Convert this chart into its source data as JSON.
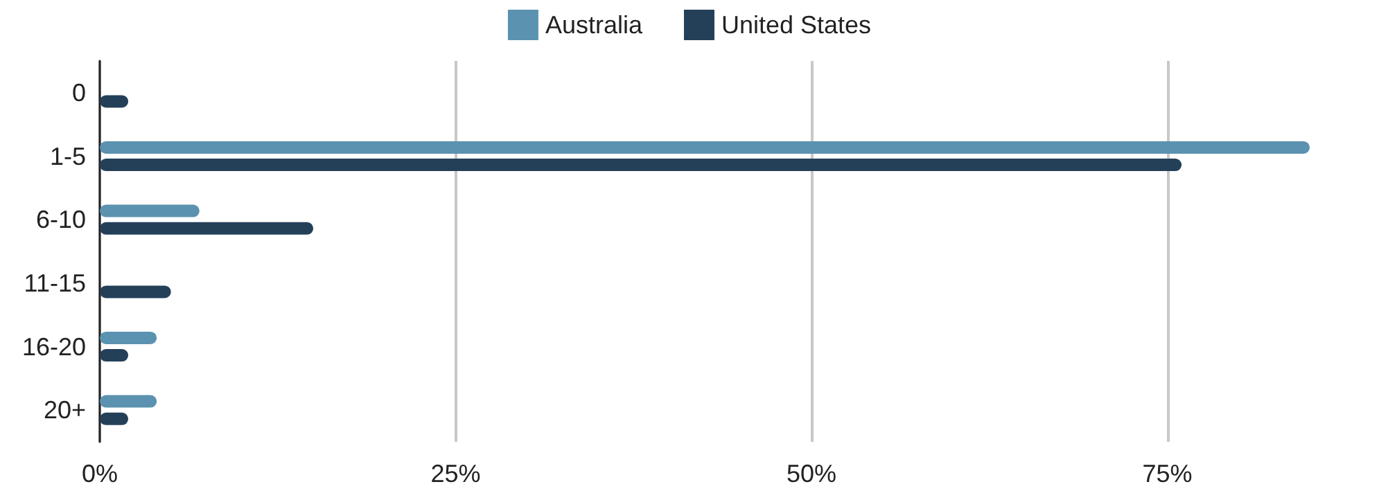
{
  "chart_data": {
    "type": "bar",
    "orientation": "horizontal",
    "categories": [
      "0",
      "1-5",
      "6-10",
      "11-15",
      "16-20",
      "20+"
    ],
    "series": [
      {
        "name": "Australia",
        "color": "#5b92b0",
        "values": [
          0,
          85,
          7,
          0,
          4,
          4
        ]
      },
      {
        "name": "United States",
        "color": "#244059",
        "values": [
          2,
          76,
          15,
          5,
          2,
          2
        ]
      }
    ],
    "xlim": [
      0,
      85
    ],
    "xticks": [
      {
        "value": 0,
        "label": "0%"
      },
      {
        "value": 25,
        "label": "25%"
      },
      {
        "value": 50,
        "label": "50%"
      },
      {
        "value": 75,
        "label": "75%"
      }
    ],
    "grid": "x",
    "legend": "top"
  }
}
